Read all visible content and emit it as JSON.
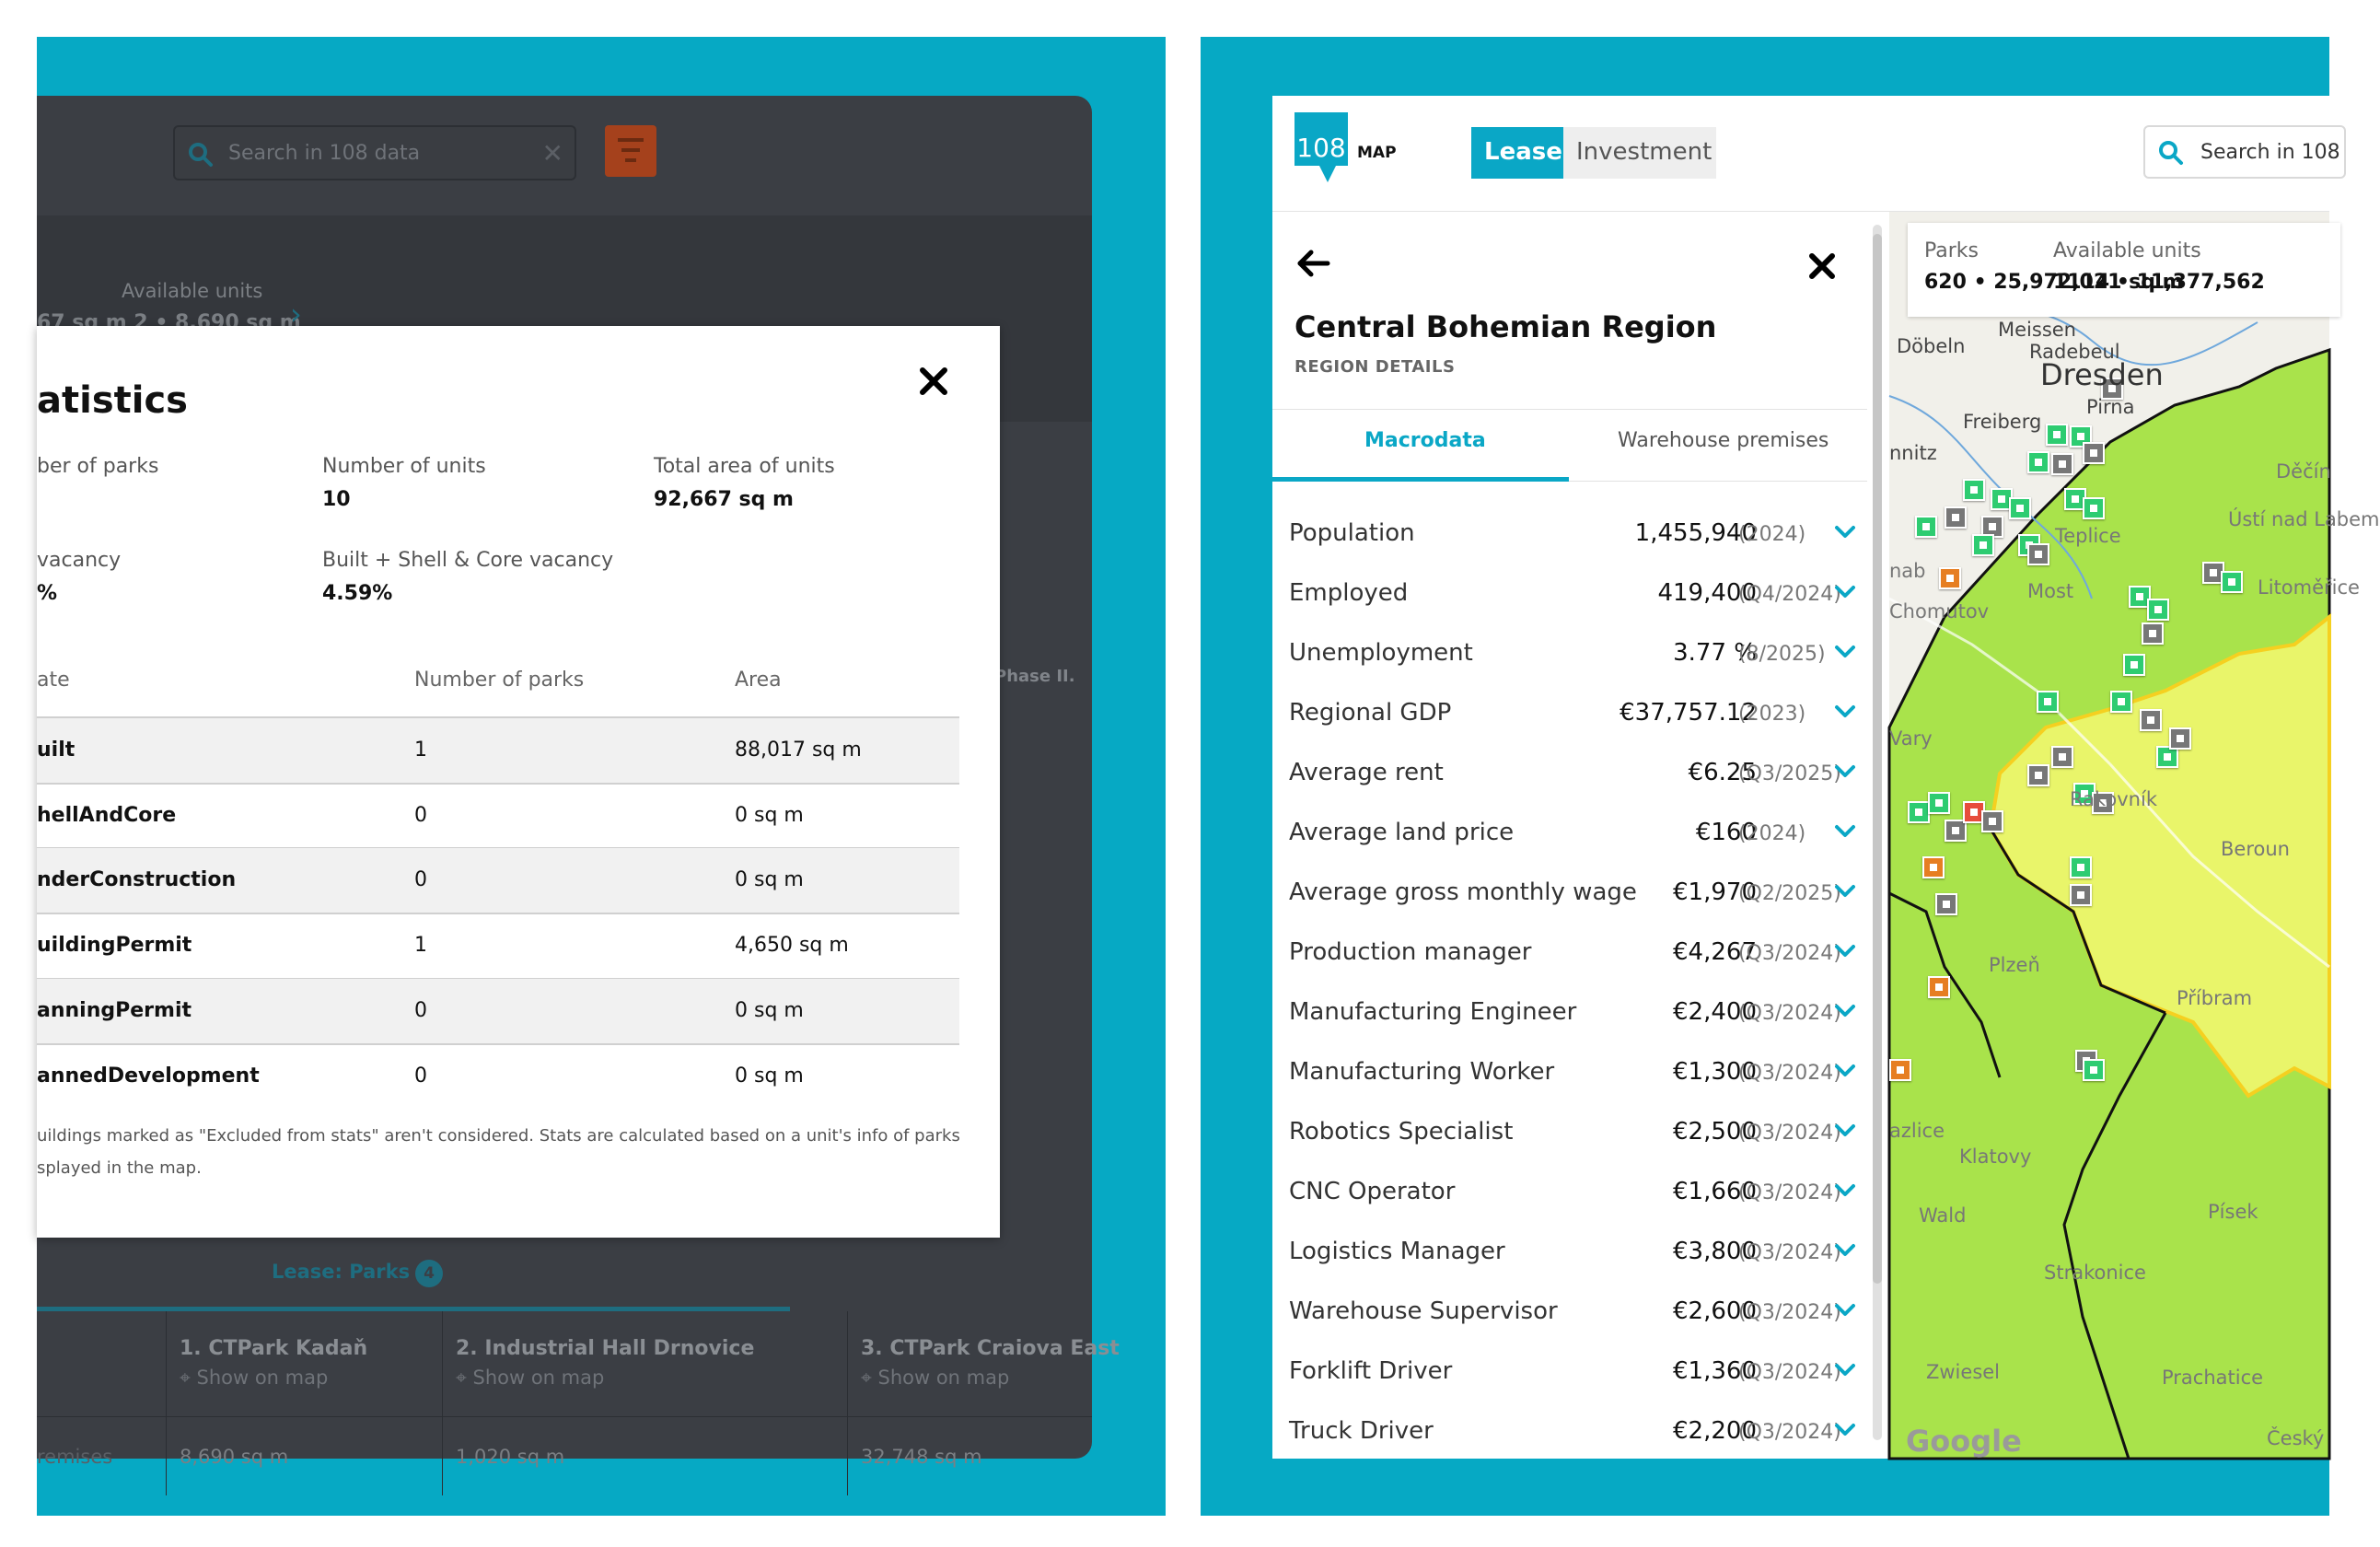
{
  "left": {
    "search_placeholder": "Search in 108 data",
    "available_units_label": "Available units",
    "available_units_value": "67 sq m  2 • 8,690 sq m",
    "map_snippet": "Phase II.",
    "lease_parks_label": "Lease: Parks",
    "lease_parks_count": "4",
    "parks_columns": [
      {
        "name": "1. CTPark Kadaň",
        "show": "Show on map",
        "area": "8,690 sq m"
      },
      {
        "name": "2. Industrial Hall Drnovice",
        "show": "Show on map",
        "area": "1,020 sq m"
      },
      {
        "name": "3. CTPark Craiova East",
        "show": "Show on map",
        "area": "32,748 sq m"
      }
    ],
    "premises_label": "remises",
    "modal": {
      "title": "atistics",
      "stats": [
        {
          "label": "ber of parks",
          "value": ""
        },
        {
          "label": "Number of units",
          "value": "10"
        },
        {
          "label": "Total area of units",
          "value": "92,667 sq m"
        },
        {
          "label": "vacancy",
          "value": "%"
        },
        {
          "label": "Built + Shell & Core vacancy",
          "value": "4.59%"
        }
      ],
      "table_headers": [
        "ate",
        "Number of parks",
        "Area"
      ],
      "table_rows": [
        {
          "state": "uilt",
          "parks": "1",
          "area": "88,017 sq m"
        },
        {
          "state": "hellAndCore",
          "parks": "0",
          "area": "0 sq m"
        },
        {
          "state": "nderConstruction",
          "parks": "0",
          "area": "0 sq m"
        },
        {
          "state": "uildingPermit",
          "parks": "1",
          "area": "4,650 sq m"
        },
        {
          "state": "anningPermit",
          "parks": "0",
          "area": "0 sq m"
        },
        {
          "state": "annedDevelopment",
          "parks": "0",
          "area": "0 sq m"
        }
      ],
      "note": "uildings marked as \"Excluded from stats\" aren't considered. Stats are calculated based on a unit's info of parks splayed in the map."
    }
  },
  "right": {
    "logo_text": "108",
    "logo_map": "MAP",
    "tab_lease": "Lease",
    "tab_investment": "Investment",
    "search_placeholder": "Search in 108",
    "region_title": "Central Bohemian Region",
    "region_subtitle": "REGION DETAILS",
    "tab_macrodata": "Macrodata",
    "tab_warehouse": "Warehouse premises",
    "macro_rows": [
      {
        "label": "Population",
        "value": "1,455,940",
        "period": "(2024)"
      },
      {
        "label": "Employed",
        "value": "419,400",
        "period": "(Q4/2024)"
      },
      {
        "label": "Unemployment",
        "value": "3.77 %",
        "period": "(8/2025)"
      },
      {
        "label": "Regional GDP",
        "value": "€37,757.12",
        "period": "(2023)"
      },
      {
        "label": "Average rent",
        "value": "€6.25",
        "period": "(Q3/2025)"
      },
      {
        "label": "Average land price",
        "value": "€160",
        "period": "(2024)"
      },
      {
        "label": "Average gross monthly wage",
        "value": "€1,970",
        "period": "(Q2/2025)"
      },
      {
        "label": "Production manager",
        "value": "€4,267",
        "period": "(Q3/2024)"
      },
      {
        "label": "Manufacturing Engineer",
        "value": "€2,400",
        "period": "(Q3/2024)"
      },
      {
        "label": "Manufacturing Worker",
        "value": "€1,300",
        "period": "(Q3/2024)"
      },
      {
        "label": "Robotics Specialist",
        "value": "€2,500",
        "period": "(Q3/2024)"
      },
      {
        "label": "CNC Operator",
        "value": "€1,660",
        "period": "(Q3/2024)"
      },
      {
        "label": "Logistics Manager",
        "value": "€3,800",
        "period": "(Q3/2024)"
      },
      {
        "label": "Warehouse Supervisor",
        "value": "€2,600",
        "period": "(Q3/2024)"
      },
      {
        "label": "Forklift Driver",
        "value": "€1,360",
        "period": "(Q3/2024)"
      },
      {
        "label": "Truck Driver",
        "value": "€2,200",
        "period": "(Q3/2024)"
      }
    ],
    "map": {
      "parks_label": "Parks",
      "parks_value": "620 • 25,972,021 sq m",
      "units_label": "Available units",
      "units_value": "1114 • 11,377,562",
      "places": [
        "Meissen",
        "Döbeln",
        "Radebeul",
        "Dresden",
        "Pirna",
        "Freiberg",
        "nnitz",
        "Děčín",
        "Ústí nad Labem",
        "Teplice",
        "nab",
        "Most",
        "Chomutov",
        "Litoměřice",
        "Vary",
        "Rakovník",
        "Beroun",
        "Plzeň",
        "Příbram",
        "azlice",
        "Klatovy",
        "Wald",
        "Písek",
        "Strakonice",
        "Zwiesel",
        "Prachatice",
        "Český"
      ],
      "attribution": "Google"
    }
  }
}
